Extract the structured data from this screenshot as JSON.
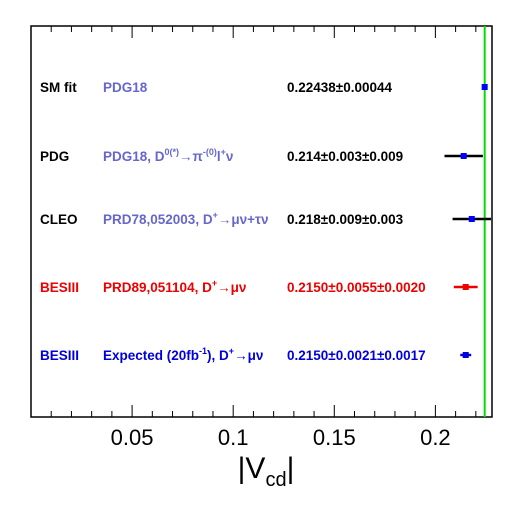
{
  "chart_data": {
    "type": "scatter",
    "xlim": [
      0.0,
      0.228
    ],
    "x_ticks": [
      0.05,
      0.1,
      0.15,
      0.2
    ],
    "x_tick_labels": [
      "0.05",
      "0.1",
      "0.15",
      "0.2"
    ],
    "xlabel": {
      "main": "|V",
      "subscript": "cd",
      "close": "|"
    },
    "grid": false,
    "reference_line": {
      "value": 0.22438,
      "color": "#00dd00"
    },
    "rows": [
      {
        "experiment": "SM fit",
        "reference": "PDG18",
        "result": "0.22438±0.00044",
        "value": 0.22438,
        "err_low": 0.00044,
        "err_high": 0.00044,
        "exp_color": "#000000",
        "ref_color": "#6666cc",
        "result_color": "#000000",
        "marker_color": "#0000ff",
        "bar_color": "#000000"
      },
      {
        "experiment": "PDG",
        "reference": "PDG18, D",
        "reference_sup": "0(*)",
        "reference_mid": "→π",
        "reference_sup2": "-(0)",
        "reference_tail": "l",
        "reference_sup3": "+",
        "reference_end": "ν",
        "result": "0.214±0.003±0.009",
        "value": 0.214,
        "err_low": 0.0095,
        "err_high": 0.0095,
        "exp_color": "#000000",
        "ref_color": "#6666cc",
        "result_color": "#000000",
        "marker_color": "#0000ff",
        "bar_color": "#000000"
      },
      {
        "experiment": "CLEO",
        "reference": "PRD78,052003, D",
        "reference_sup": "+",
        "reference_mid": "→μν+τν",
        "result": "0.218±0.009±0.003",
        "value": 0.218,
        "err_low": 0.0095,
        "err_high": 0.0095,
        "exp_color": "#000000",
        "ref_color": "#6666cc",
        "result_color": "#000000",
        "marker_color": "#0000ff",
        "bar_color": "#000000"
      },
      {
        "experiment": "BESIII",
        "reference": "PRD89,051104, D",
        "reference_sup": "+",
        "reference_mid": "→μν",
        "result": "0.2150±0.0055±0.0020",
        "value": 0.215,
        "err_low": 0.0059,
        "err_high": 0.0059,
        "exp_color": "#ee0000",
        "ref_color": "#ee0000",
        "result_color": "#ee0000",
        "marker_color": "#ee0000",
        "bar_color": "#ee0000"
      },
      {
        "experiment": "BESIII",
        "reference": "Expected (20fb",
        "reference_sup": "-1",
        "reference_mid": "), D",
        "reference_sup2": "+",
        "reference_tail": "→μν",
        "result": "0.2150±0.0021±0.0017",
        "value": 0.215,
        "err_low": 0.0027,
        "err_high": 0.0027,
        "exp_color": "#0000dd",
        "ref_color": "#0000dd",
        "result_color": "#0000dd",
        "marker_color": "#0000dd",
        "bar_color": "#0000dd"
      }
    ]
  }
}
